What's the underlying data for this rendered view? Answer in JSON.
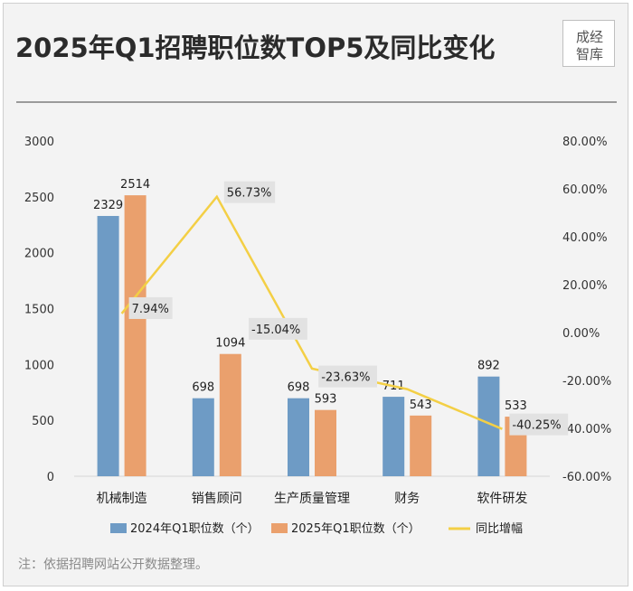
{
  "header": {
    "title": "2025年Q1招聘职位数TOP5及同比变化",
    "logo_text": [
      "成经",
      "智库"
    ]
  },
  "footer": {
    "note": "注：依据招聘网站公开数据整理。"
  },
  "colors": {
    "series_2024": "#6e9bc5",
    "series_2025": "#eaa06d",
    "yoy_line": "#f3cf45",
    "label_box": "#e2e2e2"
  },
  "chart_data": {
    "type": "bar",
    "title": "2025年Q1招聘职位数TOP5及同比变化",
    "categories": [
      "机械制造",
      "销售顾问",
      "生产质量管理",
      "财务",
      "软件研发"
    ],
    "series": [
      {
        "name": "2024年Q1职位数（个）",
        "values": [
          2329,
          698,
          698,
          711,
          892
        ],
        "labels": [
          "2329",
          "698",
          "698",
          "711",
          "892"
        ]
      },
      {
        "name": "2025年Q1职位数（个）",
        "values": [
          2514,
          1094,
          593,
          543,
          533
        ],
        "labels": [
          "2514",
          "1094",
          "593",
          "543",
          "533"
        ]
      }
    ],
    "line_series": {
      "name": "同比增幅",
      "values": [
        7.94,
        56.73,
        -15.04,
        -23.63,
        -40.25
      ],
      "labels": [
        "7.94%",
        "56.73%",
        "-15.04%",
        "-23.63%",
        "-40.25%"
      ],
      "axis": "right"
    },
    "y_left": {
      "range": [
        0,
        3000
      ],
      "ticks": [
        0,
        500,
        1000,
        1500,
        2000,
        2500,
        3000
      ],
      "tick_labels": [
        "0",
        "500",
        "1000",
        "1500",
        "2000",
        "2500",
        "3000"
      ]
    },
    "y_right": {
      "range": [
        -60,
        80
      ],
      "ticks": [
        -60,
        -40,
        -20,
        0,
        20,
        40,
        60,
        80
      ],
      "tick_labels": [
        "-60.00%",
        "-40.00%",
        "-20.00%",
        "0.00%",
        "20.00%",
        "40.00%",
        "60.00%",
        "80.00%"
      ]
    },
    "legend": {
      "position": "bottom",
      "entries": [
        "2024年Q1职位数（个）",
        "2025年Q1职位数（个）",
        "同比增幅"
      ]
    },
    "grid": false
  }
}
